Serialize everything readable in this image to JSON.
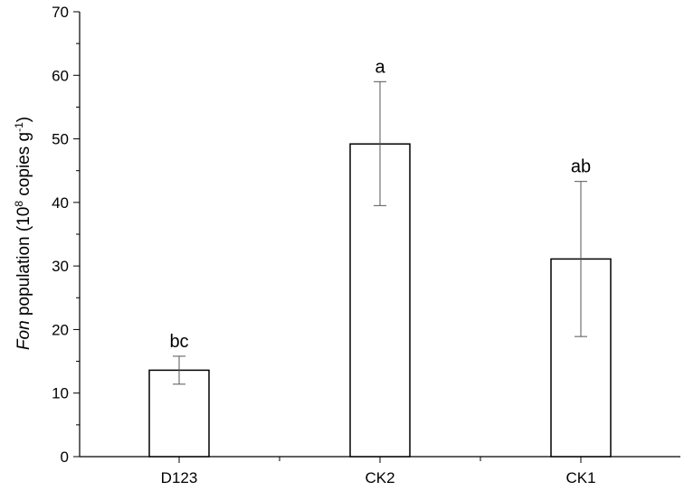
{
  "chart_data": {
    "type": "bar",
    "categories": [
      "D123",
      "CK2",
      "CK1"
    ],
    "values": [
      13.6,
      49.2,
      31.1
    ],
    "error_low": [
      11.4,
      39.5,
      18.9
    ],
    "error_high": [
      15.8,
      59.0,
      43.3
    ],
    "significance_labels": [
      "bc",
      "a",
      "ab"
    ],
    "ylabel": {
      "italic": "Fon",
      "text": " population (10",
      "sup1": "8",
      "text2": " copies g",
      "sup2": "-1",
      "close": ")"
    },
    "ylim": [
      0,
      70
    ],
    "yticks": [
      "0",
      "10",
      "20",
      "30",
      "40",
      "50",
      "60",
      "70"
    ],
    "grid": false,
    "colors": {
      "bar_fill": "#ffffff",
      "bar_stroke": "#000000",
      "axis": "#000000",
      "error": "#555555"
    }
  }
}
